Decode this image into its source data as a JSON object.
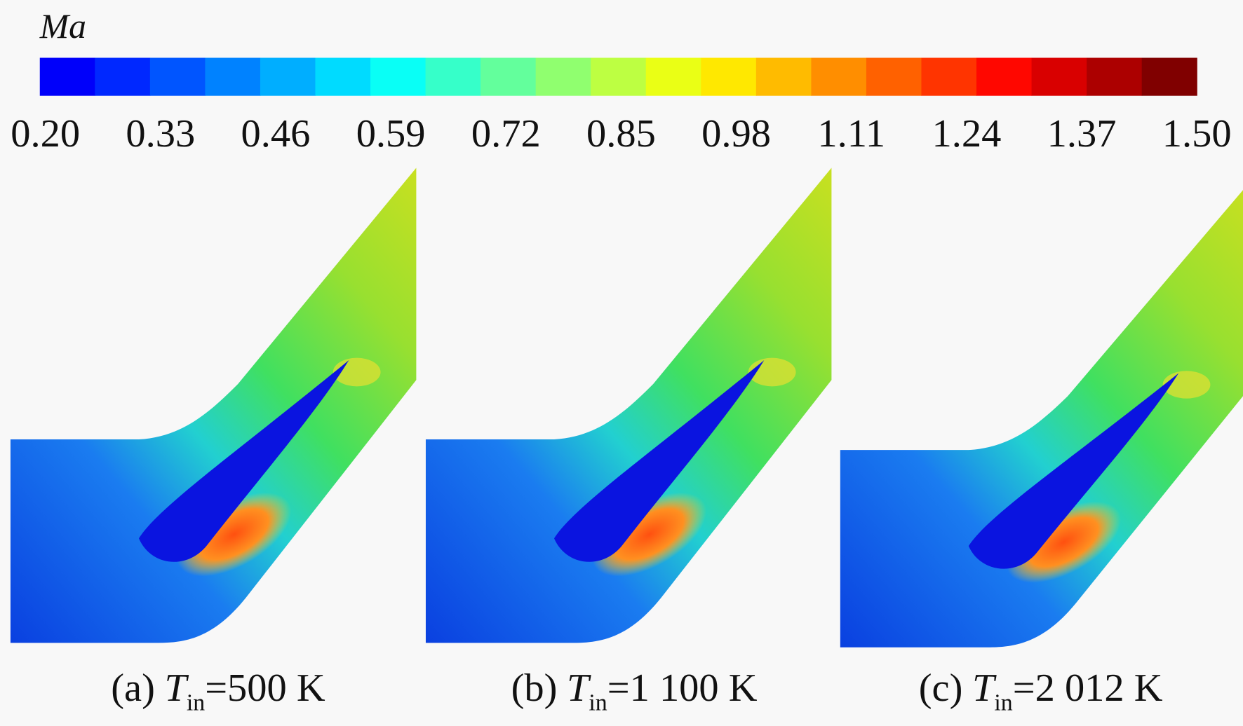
{
  "colorbar": {
    "label": "Ma",
    "range": [
      0.2,
      1.5
    ],
    "ticks": [
      {
        "value": 0.2,
        "label": "0.20"
      },
      {
        "value": 0.33,
        "label": "0.33"
      },
      {
        "value": 0.46,
        "label": "0.46"
      },
      {
        "value": 0.59,
        "label": "0.59"
      },
      {
        "value": 0.72,
        "label": "0.72"
      },
      {
        "value": 0.85,
        "label": "0.85"
      },
      {
        "value": 0.98,
        "label": "0.98"
      },
      {
        "value": 1.11,
        "label": "1.11"
      },
      {
        "value": 1.24,
        "label": "1.24"
      },
      {
        "value": 1.37,
        "label": "1.37"
      },
      {
        "value": 1.5,
        "label": "1.50"
      }
    ]
  },
  "panels": [
    {
      "letter": "(a)",
      "symbol": "T",
      "subscript": "in",
      "value": "=500 K"
    },
    {
      "letter": "(b)",
      "symbol": "T",
      "subscript": "in",
      "value": "=1 100 K"
    },
    {
      "letter": "(c)",
      "symbol": "T",
      "subscript": "in",
      "value": "=2 012 K"
    }
  ]
}
